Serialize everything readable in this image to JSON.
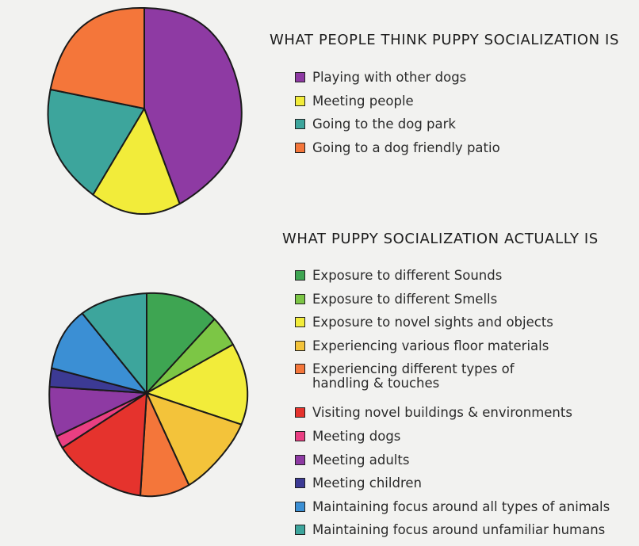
{
  "chart_data": [
    {
      "type": "pie",
      "title": "WHAT PEOPLE THINK PUPPY SOCIALIZATION IS",
      "categories": [
        "Playing with other dogs",
        "Meeting people",
        "Going to the dog park",
        "Going to a dog friendly patio"
      ],
      "values": [
        44,
        15,
        19,
        22
      ],
      "colors": [
        "#8e3aa3",
        "#f2ec3a",
        "#3da59c",
        "#f4763a"
      ],
      "legend": "right"
    },
    {
      "type": "pie",
      "title": "WHAT PUPPY SOCIALIZATION ACTUALLY IS",
      "categories": [
        "Exposure to different Sounds",
        "Exposure to different Smells",
        "Exposure to novel sights and objects",
        "Experiencing various floor materials",
        "Experiencing different types of\nhandling & touches",
        "Visiting novel buildings & environments",
        "Meeting dogs",
        "Meeting adults",
        "Meeting children",
        "Maintaining focus around all types of animals",
        "Maintaining focus around unfamiliar humans"
      ],
      "values": [
        12,
        5,
        13,
        13,
        8,
        15,
        2,
        8,
        3,
        10,
        11
      ],
      "colors": [
        "#3ea552",
        "#7cc645",
        "#f2ec3a",
        "#f3c33a",
        "#f4763a",
        "#e5332d",
        "#ea3f82",
        "#8e3aa3",
        "#3c3a94",
        "#3b8fd4",
        "#3da59c"
      ],
      "legend": "right"
    }
  ]
}
